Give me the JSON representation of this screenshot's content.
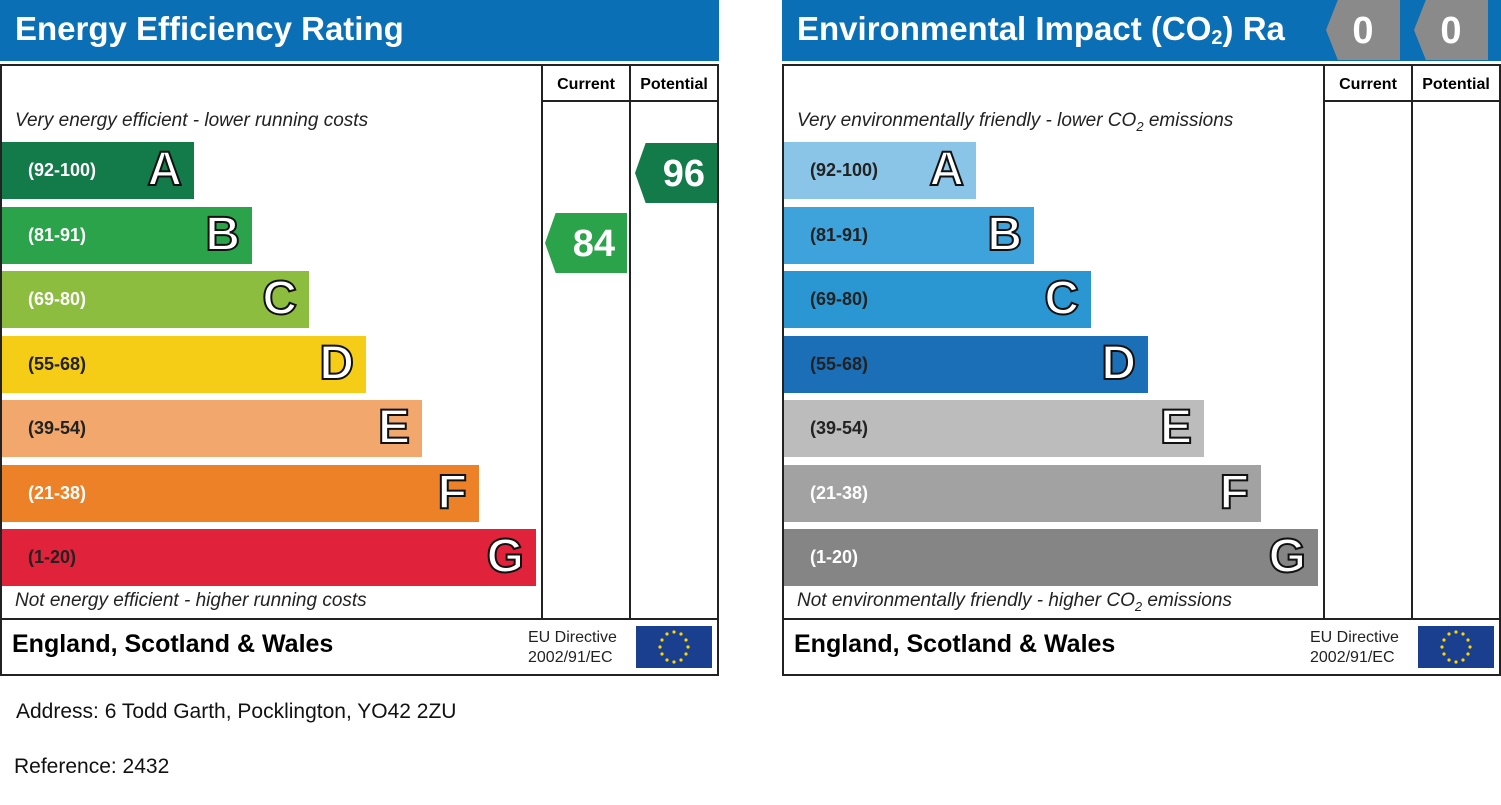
{
  "energy": {
    "title": "Energy Efficiency Rating",
    "col_current": "Current",
    "col_potential": "Potential",
    "top_caption": "Very energy efficient - lower running costs",
    "bottom_caption": "Not energy efficient - higher running costs",
    "bands": [
      {
        "range": "(92-100)",
        "letter": "A",
        "color": "#137a4a"
      },
      {
        "range": "(81-91)",
        "letter": "B",
        "color": "#2aa34a"
      },
      {
        "range": "(69-80)",
        "letter": "C",
        "color": "#8cbd3f"
      },
      {
        "range": "(55-68)",
        "letter": "D",
        "color": "#f5cc16"
      },
      {
        "range": "(39-54)",
        "letter": "E",
        "color": "#f2a86c"
      },
      {
        "range": "(21-38)",
        "letter": "F",
        "color": "#ec8128"
      },
      {
        "range": "(1-20)",
        "letter": "G",
        "color": "#e1223b"
      }
    ],
    "current": {
      "value": "84",
      "color": "#2aa34a"
    },
    "potential": {
      "value": "96",
      "color": "#137a4a"
    },
    "country": "England, Scotland & Wales",
    "eu_line1": "EU Directive",
    "eu_line2": "2002/91/EC"
  },
  "environment": {
    "title_main": "Environmental Impact (CO",
    "title_sub": "2",
    "title_end": ") Ra",
    "col_current": "Current",
    "col_potential": "Potential",
    "top_caption_main": "Very environmentally friendly - lower CO",
    "top_caption_sub": "2",
    "top_caption_end": " emissions",
    "bottom_caption_main": "Not environmentally friendly - higher CO",
    "bottom_caption_sub": "2",
    "bottom_caption_end": " emissions",
    "bands": [
      {
        "range": "(92-100)",
        "letter": "A",
        "color": "#8ac4e6"
      },
      {
        "range": "(81-91)",
        "letter": "B",
        "color": "#3ea3da"
      },
      {
        "range": "(69-80)",
        "letter": "C",
        "color": "#2a97d2"
      },
      {
        "range": "(55-68)",
        "letter": "D",
        "color": "#1b6fb6"
      },
      {
        "range": "(39-54)",
        "letter": "E",
        "color": "#bcbcbc"
      },
      {
        "range": "(21-38)",
        "letter": "F",
        "color": "#a2a2a2"
      },
      {
        "range": "(1-20)",
        "letter": "G",
        "color": "#858585"
      }
    ],
    "current_tab": "0",
    "potential_tab": "0",
    "country": "England, Scotland & Wales",
    "eu_line1": "EU Directive",
    "eu_line2": "2002/91/EC"
  },
  "address": "Address: 6 Todd Garth, Pocklington, YO42 2ZU",
  "reference": "Reference: 2432"
}
